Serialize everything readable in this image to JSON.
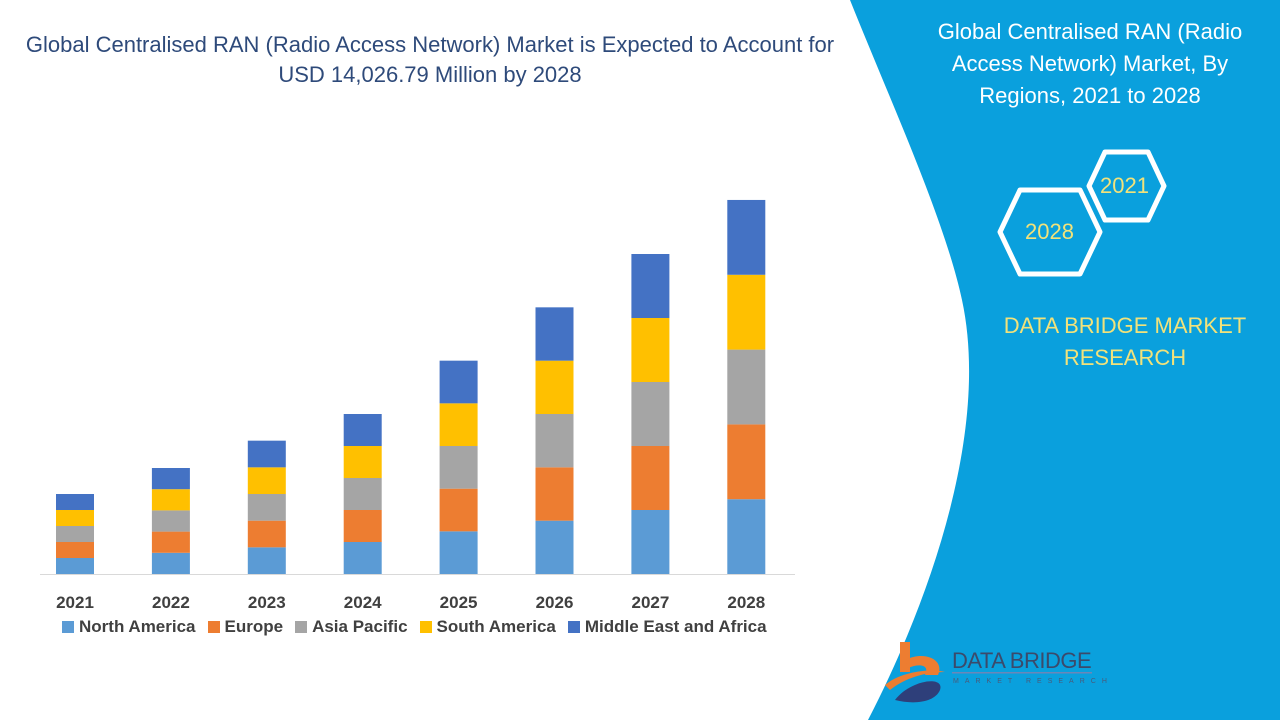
{
  "title": "Global Centralised RAN (Radio Access Network) Market is Expected to Account for USD 14,026.79 Million by 2028",
  "side_panel": {
    "title": "Global Centralised RAN (Radio Access Network) Market, By Regions, 2021 to 2028",
    "hex_years": [
      "2021",
      "2028"
    ],
    "brand": "DATA BRIDGE MARKET RESEARCH",
    "logo_text": "DATA BRIDGE",
    "logo_subtext": "MARKET RESEARCH",
    "color": "#0aa0dd"
  },
  "chart_data": {
    "type": "bar",
    "stacked": true,
    "categories": [
      "2021",
      "2022",
      "2023",
      "2024",
      "2025",
      "2026",
      "2027",
      "2028"
    ],
    "series": [
      {
        "name": "North America",
        "color": "#5b9bd5",
        "values": [
          600,
          795,
          1000,
          1200,
          1600,
          2000,
          2400,
          2805
        ]
      },
      {
        "name": "Europe",
        "color": "#ed7d31",
        "values": [
          600,
          795,
          1000,
          1200,
          1600,
          2000,
          2400,
          2805
        ]
      },
      {
        "name": "Asia Pacific",
        "color": "#a5a5a5",
        "values": [
          600,
          795,
          1000,
          1200,
          1600,
          2000,
          2400,
          2805
        ]
      },
      {
        "name": "South America",
        "color": "#ffc000",
        "values": [
          600,
          795,
          1000,
          1200,
          1600,
          2000,
          2400,
          2806
        ]
      },
      {
        "name": "Middle East and Africa",
        "color": "#4472c4",
        "values": [
          600,
          795,
          1000,
          1200,
          1600,
          2000,
          2400,
          2806
        ]
      }
    ],
    "ylim": [
      0,
      15000
    ],
    "y_axis_visible": false,
    "grid": false,
    "legend_position": "bottom"
  }
}
